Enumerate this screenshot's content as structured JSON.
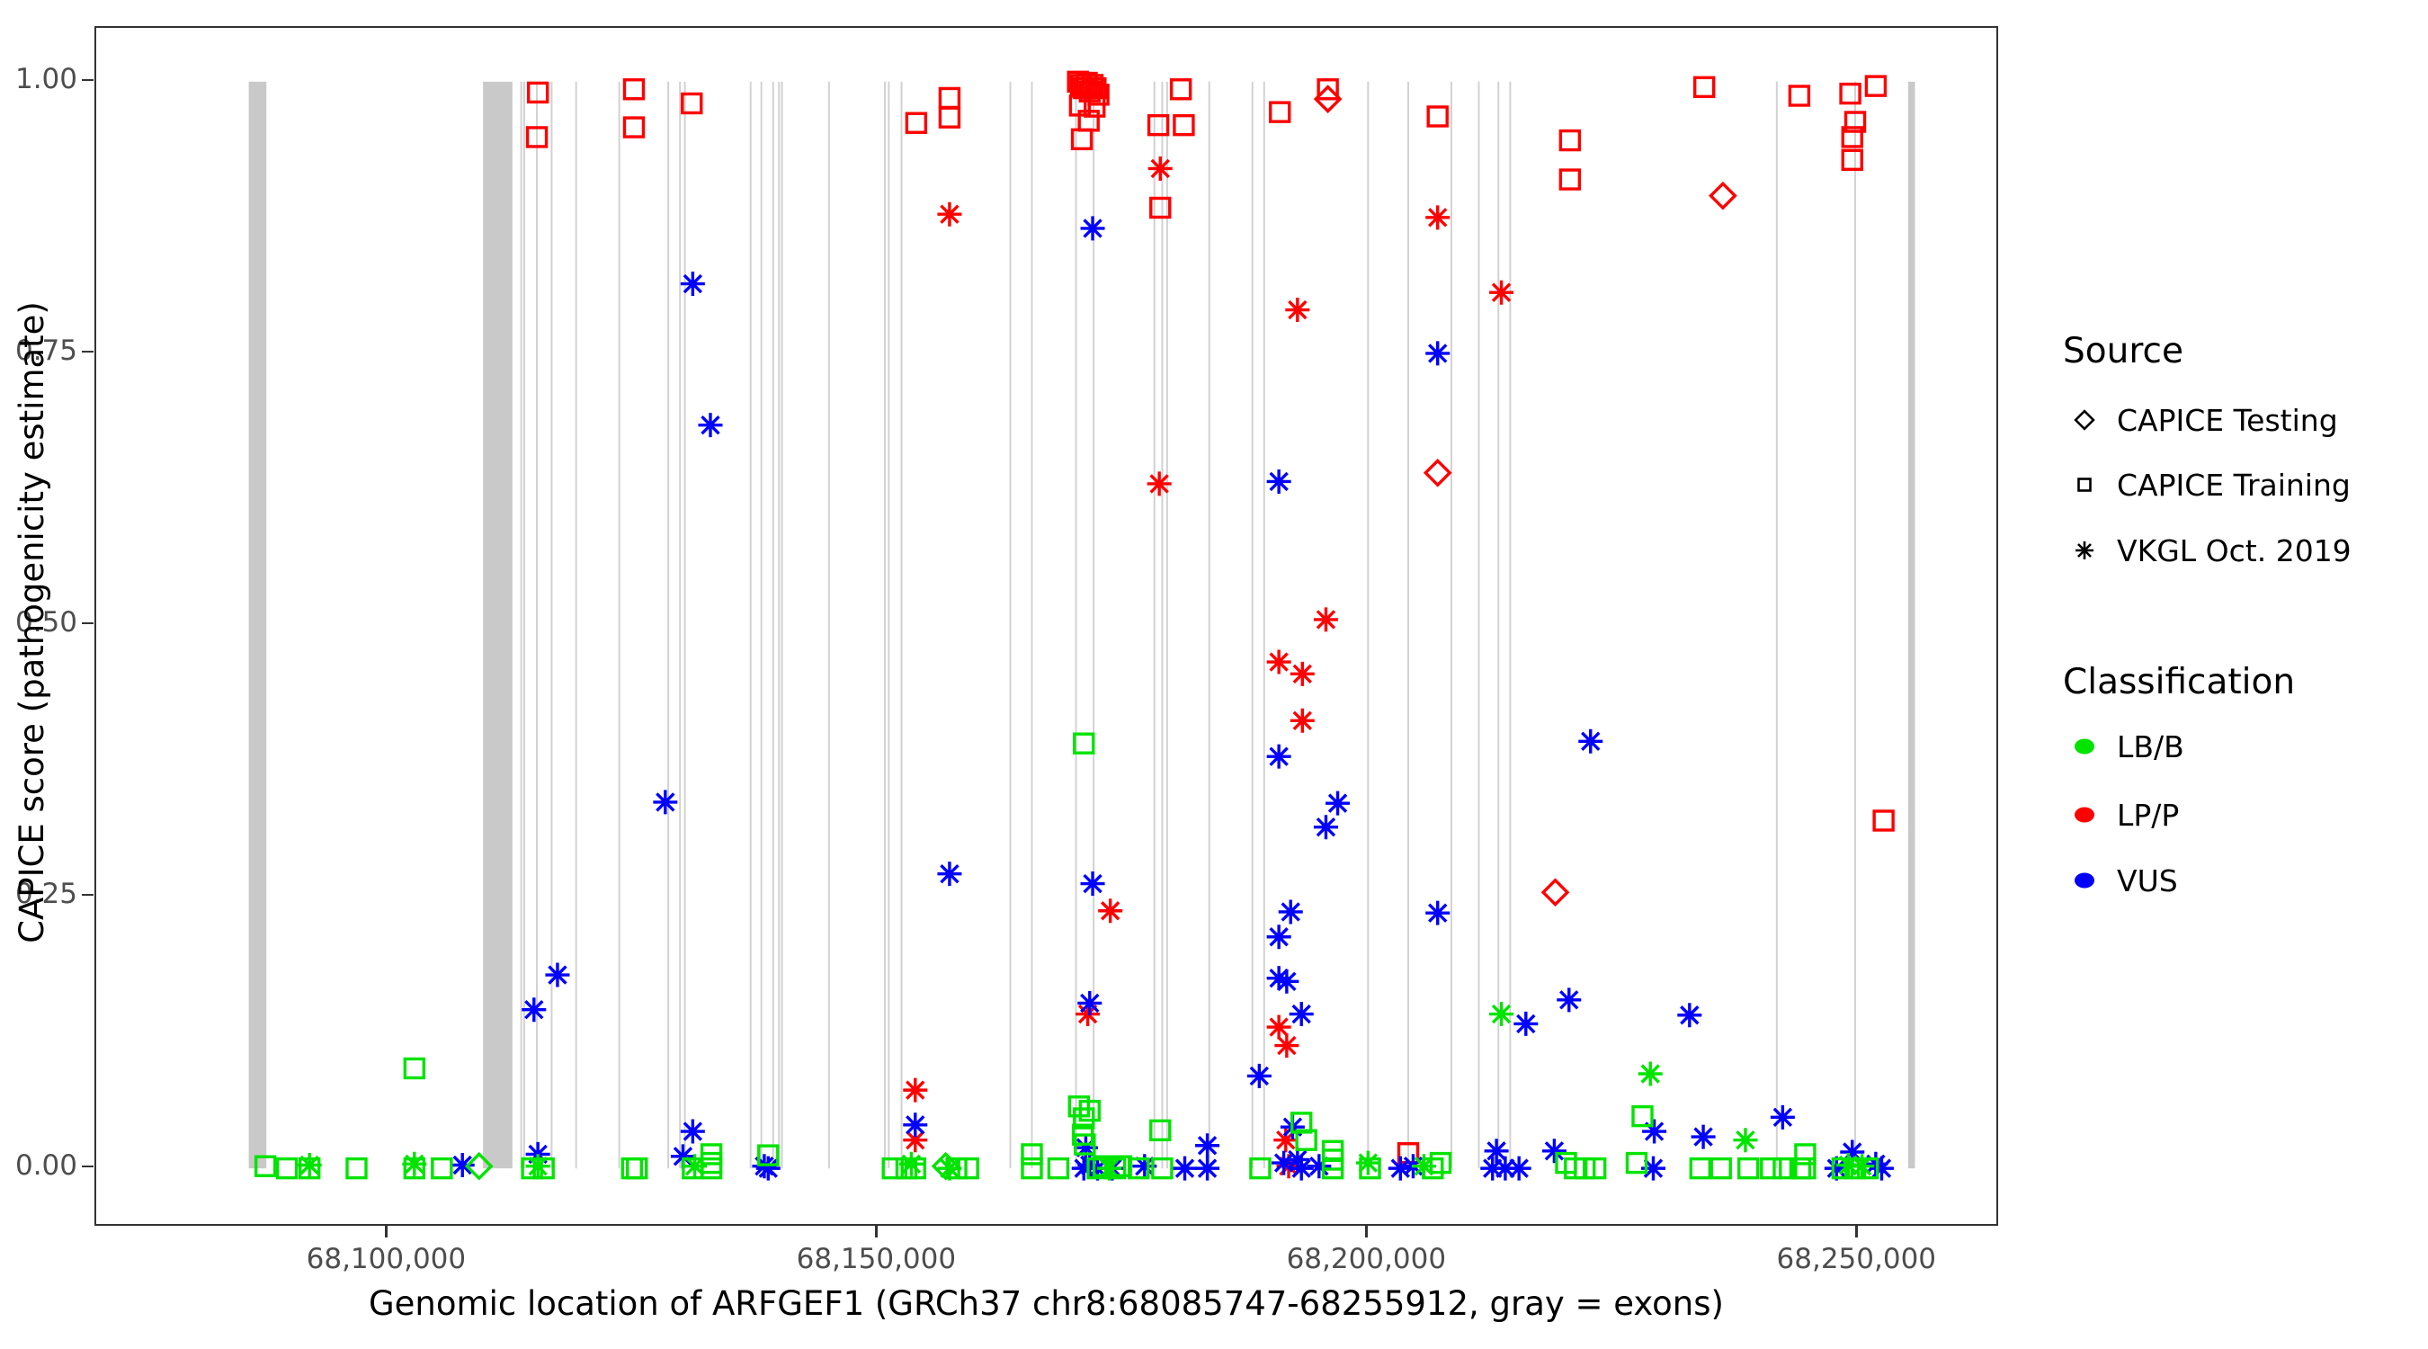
{
  "chart_data": {
    "type": "scatter",
    "xlabel": "Genomic location of ARFGEF1 (GRCh37 chr8:68085747-68255912, gray = exons)",
    "ylabel": "CAPICE score (pathogenicity estimate)",
    "gene": {
      "name": "ARFGEF1",
      "build": "GRCh37",
      "chromosome": "chr8",
      "start": 68085747,
      "end": 68255912
    },
    "gray_note": "gray = exons",
    "x_domain": [
      68070238,
      68264102
    ],
    "y_expanded": [
      -0.0512,
      1.0495
    ],
    "x_ticks": {
      "values": [
        68100000,
        68150000,
        68200000,
        68250000
      ],
      "labels": [
        "68,100,000",
        "68,150,000",
        "68,200,000",
        "68,250,000"
      ]
    },
    "y_ticks": {
      "values": [
        0,
        0.25,
        0.5,
        0.75,
        1.0
      ],
      "labels": [
        "0.00",
        "0.25",
        "0.50",
        "0.75",
        "1.00"
      ]
    },
    "exon_bars": [
      [
        68085800,
        68087600
      ],
      [
        68109700,
        68112700
      ],
      [
        68255100,
        68255800
      ]
    ],
    "exon_lines": [
      68113600,
      68113900,
      68115200,
      68116700,
      68119200,
      68123600,
      68128600,
      68129800,
      68130300,
      68137000,
      68138100,
      68139300,
      68139900,
      68140200,
      68145000,
      68150700,
      68151100,
      68152400,
      68163500,
      68165700,
      68170200,
      68172000,
      68178200,
      68179000,
      68179500,
      68183800,
      68188200,
      68189400,
      68200000,
      68204100,
      68208500,
      68211300,
      68213300,
      68214500,
      68241700,
      68249700
    ],
    "series": [
      {
        "name": "LP/P - CAPICE Training",
        "classification": "LP/P",
        "source": "CAPICE Training",
        "shape": "square",
        "color": "#FF0000",
        "points": [
          [
            68115300,
            0.99
          ],
          [
            68115200,
            0.949
          ],
          [
            68125100,
            0.993
          ],
          [
            68125100,
            0.958
          ],
          [
            68131000,
            0.98
          ],
          [
            68153900,
            0.962
          ],
          [
            68157300,
            0.985
          ],
          [
            68157300,
            0.967
          ],
          [
            68170400,
            1.0
          ],
          [
            68170700,
            0.997
          ],
          [
            68171000,
            0.994
          ],
          [
            68171300,
            0.999
          ],
          [
            68171600,
            0.991
          ],
          [
            68171900,
            0.997
          ],
          [
            68172200,
            0.994
          ],
          [
            68172500,
            0.988
          ],
          [
            68170600,
            0.978
          ],
          [
            68172100,
            0.977
          ],
          [
            68171500,
            0.964
          ],
          [
            68170800,
            0.947
          ],
          [
            68180900,
            0.993
          ],
          [
            68178600,
            0.96
          ],
          [
            68181200,
            0.96
          ],
          [
            68178800,
            0.884
          ],
          [
            68191000,
            0.972
          ],
          [
            68195900,
            0.993
          ],
          [
            68207100,
            0.968
          ],
          [
            68220600,
            0.946
          ],
          [
            68220600,
            0.91
          ],
          [
            68234300,
            0.995
          ],
          [
            68244000,
            0.987
          ],
          [
            68249200,
            0.989
          ],
          [
            68251800,
            0.996
          ],
          [
            68249700,
            0.963
          ],
          [
            68249400,
            0.949
          ],
          [
            68249400,
            0.928
          ],
          [
            68252600,
            0.32
          ],
          [
            68204100,
            0.014
          ]
        ]
      },
      {
        "name": "LP/P - VKGL Oct. 2019",
        "classification": "LP/P",
        "source": "VKGL Oct. 2019",
        "shape": "asterisk",
        "color": "#FF0000",
        "points": [
          [
            68157300,
            0.878
          ],
          [
            68178800,
            0.92
          ],
          [
            68178700,
            0.63
          ],
          [
            68190900,
            0.466
          ],
          [
            68193300,
            0.455
          ],
          [
            68193300,
            0.412
          ],
          [
            68192800,
            0.79
          ],
          [
            68195700,
            0.505
          ],
          [
            68190900,
            0.13
          ],
          [
            68191700,
            0.113
          ],
          [
            68173700,
            0.237
          ],
          [
            68171400,
            0.142
          ],
          [
            68207100,
            0.875
          ],
          [
            68213600,
            0.806
          ],
          [
            68153800,
            0.072
          ],
          [
            68153800,
            0.026
          ],
          [
            68191600,
            0.026
          ],
          [
            68191900,
            0.002
          ]
        ]
      },
      {
        "name": "LP/P - CAPICE Testing",
        "classification": "LP/P",
        "source": "CAPICE Testing",
        "shape": "diamond",
        "color": "#FF0000",
        "points": [
          [
            68195900,
            0.984
          ],
          [
            68207100,
            0.64
          ],
          [
            68219100,
            0.254
          ],
          [
            68236200,
            0.895
          ]
        ]
      },
      {
        "name": "VUS - VKGL Oct. 2019",
        "classification": "VUS",
        "source": "VKGL Oct. 2019",
        "shape": "asterisk",
        "color": "#0000FF",
        "points": [
          [
            68114900,
            0.146
          ],
          [
            68117300,
            0.178
          ],
          [
            68128300,
            0.337
          ],
          [
            68131100,
            0.814
          ],
          [
            68132900,
            0.684
          ],
          [
            68157300,
            0.271
          ],
          [
            68171900,
            0.865
          ],
          [
            68171900,
            0.262
          ],
          [
            68171600,
            0.152
          ],
          [
            68188900,
            0.085
          ],
          [
            68190900,
            0.632
          ],
          [
            68190900,
            0.379
          ],
          [
            68190900,
            0.213
          ],
          [
            68190900,
            0.175
          ],
          [
            68191700,
            0.172
          ],
          [
            68192100,
            0.236
          ],
          [
            68193200,
            0.142
          ],
          [
            68195700,
            0.314
          ],
          [
            68196900,
            0.336
          ],
          [
            68207100,
            0.75
          ],
          [
            68207100,
            0.235
          ],
          [
            68216100,
            0.133
          ],
          [
            68220500,
            0.155
          ],
          [
            68222700,
            0.393
          ],
          [
            68232800,
            0.141
          ],
          [
            68242300,
            0.047
          ],
          [
            68249400,
            0.015
          ],
          [
            68153800,
            0.04
          ],
          [
            68107600,
            0.003
          ],
          [
            68115300,
            0.013
          ],
          [
            68130100,
            0.011
          ],
          [
            68131100,
            0.034
          ],
          [
            68138400,
            0.002
          ],
          [
            68138800,
            0.0
          ],
          [
            68171200,
            0.019
          ],
          [
            68171000,
            0.0
          ],
          [
            68171600,
            0.003
          ],
          [
            68172400,
            0.0
          ],
          [
            68173900,
            0.0
          ],
          [
            68177200,
            0.002
          ],
          [
            68181300,
            0.0
          ],
          [
            68183600,
            0.021
          ],
          [
            68183600,
            0.0
          ],
          [
            68192300,
            0.038
          ],
          [
            68191400,
            0.005
          ],
          [
            68192800,
            0.008
          ],
          [
            68193200,
            0.0
          ],
          [
            68195000,
            0.002
          ],
          [
            68203300,
            0.0
          ],
          [
            68204600,
            0.002
          ],
          [
            68212700,
            0.0
          ],
          [
            68213100,
            0.016
          ],
          [
            68214000,
            0.0
          ],
          [
            68215400,
            0.0
          ],
          [
            68219000,
            0.016
          ],
          [
            68229200,
            0.034
          ],
          [
            68229100,
            0.0
          ],
          [
            68234200,
            0.029
          ],
          [
            68247800,
            0.0
          ],
          [
            68251800,
            0.004
          ],
          [
            68252400,
            0.0
          ]
        ]
      },
      {
        "name": "LB/B - CAPICE Training",
        "classification": "LB/B",
        "source": "CAPICE Training",
        "shape": "square",
        "color": "#00E400",
        "points": [
          [
            68102700,
            0.092
          ],
          [
            68171000,
            0.391
          ],
          [
            68087500,
            0.002
          ],
          [
            68089700,
            0.0
          ],
          [
            68092000,
            0.0
          ],
          [
            68096800,
            0.0
          ],
          [
            68102700,
            0.0
          ],
          [
            68105500,
            0.0
          ],
          [
            68114700,
            0.0
          ],
          [
            68115900,
            0.0
          ],
          [
            68124900,
            0.0
          ],
          [
            68125400,
            0.0
          ],
          [
            68131100,
            0.0
          ],
          [
            68133000,
            0.013
          ],
          [
            68133000,
            0.005
          ],
          [
            68133000,
            0.0
          ],
          [
            68138800,
            0.012
          ],
          [
            68151500,
            0.0
          ],
          [
            68152900,
            0.0
          ],
          [
            68153800,
            0.0
          ],
          [
            68158000,
            0.0
          ],
          [
            68159200,
            0.0
          ],
          [
            68165700,
            0.013
          ],
          [
            68165700,
            0.0
          ],
          [
            68168400,
            0.0
          ],
          [
            68170500,
            0.057
          ],
          [
            68171000,
            0.046
          ],
          [
            68171600,
            0.053
          ],
          [
            68170900,
            0.031
          ],
          [
            68171100,
            0.022
          ],
          [
            68172400,
            0.0
          ],
          [
            68173000,
            0.002
          ],
          [
            68174200,
            0.0
          ],
          [
            68174800,
            0.002
          ],
          [
            68176600,
            0.0
          ],
          [
            68178800,
            0.035
          ],
          [
            68179000,
            0.0
          ],
          [
            68189000,
            0.0
          ],
          [
            68193200,
            0.042
          ],
          [
            68193700,
            0.026
          ],
          [
            68196400,
            0.016
          ],
          [
            68196400,
            0.008
          ],
          [
            68196400,
            0.0
          ],
          [
            68200200,
            0.0
          ],
          [
            68206600,
            0.0
          ],
          [
            68207400,
            0.005
          ],
          [
            68220200,
            0.005
          ],
          [
            68221100,
            0.0
          ],
          [
            68222100,
            0.0
          ],
          [
            68223200,
            0.0
          ],
          [
            68227400,
            0.005
          ],
          [
            68228000,
            0.048
          ],
          [
            68233900,
            0.0
          ],
          [
            68236000,
            0.0
          ],
          [
            68238800,
            0.0
          ],
          [
            68241100,
            0.0
          ],
          [
            68242400,
            0.0
          ],
          [
            68244100,
            0.0
          ],
          [
            68244600,
            0.013
          ],
          [
            68244600,
            0.0
          ],
          [
            68248400,
            0.0
          ],
          [
            68249700,
            0.0
          ],
          [
            68251000,
            0.0
          ]
        ]
      },
      {
        "name": "LB/B - VKGL Oct. 2019",
        "classification": "LB/B",
        "source": "VKGL Oct. 2019",
        "shape": "asterisk",
        "color": "#00E400",
        "points": [
          [
            68092000,
            0.003
          ],
          [
            68102700,
            0.004
          ],
          [
            68115300,
            0.002
          ],
          [
            68131300,
            0.002
          ],
          [
            68153400,
            0.004
          ],
          [
            68157300,
            0.0
          ],
          [
            68173600,
            0.0
          ],
          [
            68200000,
            0.005
          ],
          [
            68205700,
            0.002
          ],
          [
            68213600,
            0.142
          ],
          [
            68228800,
            0.087
          ],
          [
            68238500,
            0.026
          ],
          [
            68249000,
            0.003
          ],
          [
            68250400,
            0.002
          ]
        ]
      },
      {
        "name": "LB/B - CAPICE Testing",
        "classification": "LB/B",
        "source": "CAPICE Testing",
        "shape": "diamond",
        "color": "#00E400",
        "points": [
          [
            68109300,
            0.002
          ],
          [
            68156900,
            0.002
          ]
        ]
      }
    ]
  },
  "colors": {
    "lp_p": "#FF0000",
    "lb_b": "#00E400",
    "vus": "#0000FF",
    "exon_bar": "#C9C9C9",
    "exon_line": "#D2D2D2",
    "axis_text": "#4D4D4D",
    "panel_border": "#333333"
  },
  "legend": {
    "source": {
      "title": "Source",
      "items": [
        {
          "label": "CAPICE Testing",
          "shape": "diamond"
        },
        {
          "label": "CAPICE Training",
          "shape": "square"
        },
        {
          "label": "VKGL Oct. 2019",
          "shape": "asterisk"
        }
      ]
    },
    "classification": {
      "title": "Classification",
      "items": [
        {
          "label": "LB/B",
          "color": "#00E400"
        },
        {
          "label": "LP/P",
          "color": "#FF0000"
        },
        {
          "label": "VUS",
          "color": "#0000FF"
        }
      ]
    }
  }
}
